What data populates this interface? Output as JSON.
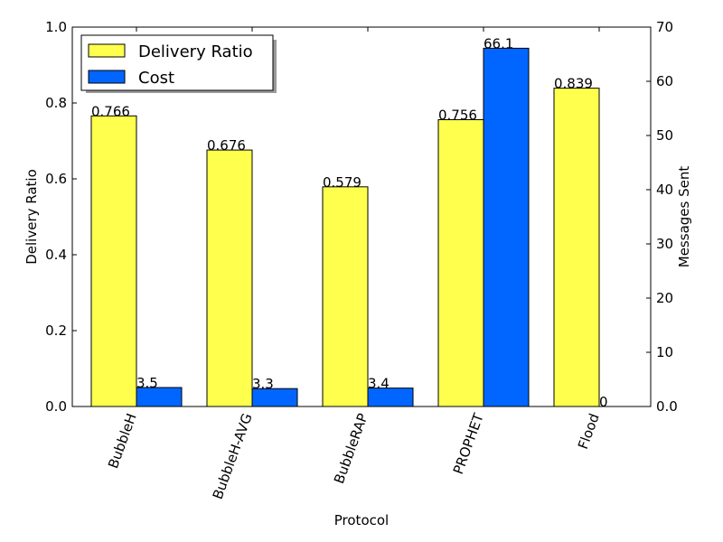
{
  "chart_data": {
    "type": "bar",
    "categories": [
      "BubbleH",
      "BubbleH-AVG",
      "BubbleRAP",
      "PROPHET",
      "Flood"
    ],
    "series": [
      {
        "name": "Delivery Ratio",
        "axis": "left",
        "color": "#ffff4d",
        "values": [
          0.766,
          0.676,
          0.579,
          0.756,
          0.839
        ],
        "labels": [
          "0.766",
          "0.676",
          "0.579",
          "0.756",
          "0.839"
        ]
      },
      {
        "name": "Cost",
        "axis": "right",
        "color": "#0066ff",
        "values": [
          3.5,
          3.3,
          3.4,
          66.1,
          0
        ],
        "labels": [
          "3.5",
          "3.3",
          "3.4",
          "66.1",
          "0"
        ]
      }
    ],
    "xlabel": "Protocol",
    "ylabel_left": "Delivery Ratio",
    "ylabel_right": "Messages Sent",
    "ylim_left": [
      0,
      1.0
    ],
    "ylim_right": [
      0,
      70
    ],
    "yticks_left": [
      "0.0",
      "0.2",
      "0.4",
      "0.6",
      "0.8",
      "1.0"
    ],
    "yticks_right": [
      "0.0",
      "10",
      "20",
      "30",
      "40",
      "50",
      "60",
      "70"
    ],
    "legend_location": "upper left",
    "grid": false
  }
}
